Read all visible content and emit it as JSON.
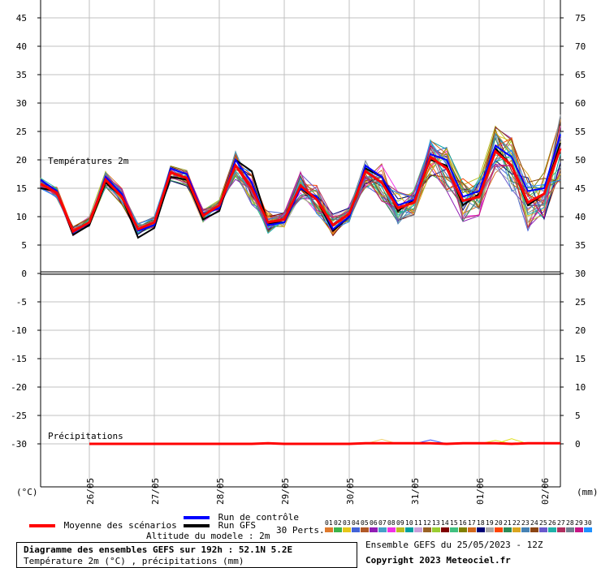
{
  "chart_data": {
    "type": "line",
    "panels": [
      {
        "name": "Températures 2m",
        "left_axis": {
          "min": 0,
          "max": 45,
          "ticks": [
            0,
            5,
            10,
            15,
            20,
            25,
            30,
            35,
            40,
            45
          ]
        },
        "right_axis": {
          "ticks": [
            30,
            35,
            40,
            45,
            50,
            55,
            60,
            65,
            70,
            75
          ]
        }
      },
      {
        "name": "Précipitations",
        "left_axis": {
          "ticks": [
            0,
            -5,
            -10,
            -15,
            -20,
            -25,
            -30
          ]
        },
        "right_axis": {
          "ticks": [
            30,
            25,
            20,
            15,
            10,
            5,
            0
          ]
        }
      }
    ],
    "x_tick_labels": [
      "26/05",
      "27/05",
      "28/05",
      "29/05",
      "30/05",
      "31/05",
      "01/06",
      "02/06"
    ],
    "left_unit": "(°C)",
    "right_unit": "(mm)",
    "steps_hours": [
      0,
      6,
      12,
      18,
      24,
      30,
      36,
      42,
      48,
      54,
      60,
      66,
      72,
      78,
      84,
      90,
      96,
      102,
      108,
      114,
      120,
      126,
      132,
      138,
      144,
      150,
      156,
      162,
      168,
      174,
      180,
      186,
      192
    ],
    "series": [
      {
        "name": "Moyenne des scénarios",
        "color": "#ff0000",
        "temperature": [
          15.8,
          14.2,
          7.4,
          9.0,
          16.5,
          13.5,
          7.8,
          9.0,
          17.8,
          16.8,
          10.2,
          12.0,
          19.0,
          15.0,
          9.0,
          9.5,
          15.5,
          13.0,
          8.5,
          10.5,
          18.0,
          16.0,
          11.5,
          12.5,
          20.5,
          18.5,
          12.8,
          13.5,
          21.5,
          19.0,
          12.5,
          14.0,
          22.0
        ],
        "precipitation": [
          0,
          0,
          0,
          0,
          0,
          0,
          0,
          0,
          0,
          0,
          0,
          0,
          0,
          0,
          0.1,
          0,
          0,
          0,
          0,
          0,
          0.1,
          0.1,
          0.1,
          0.1,
          0.1,
          0,
          0.1,
          0.1,
          0.1,
          0,
          0.1,
          0.1,
          0.1
        ]
      },
      {
        "name": "Run de contrôle",
        "color": "#0000ff",
        "temperature": [
          16.5,
          14.5,
          7.2,
          8.9,
          17.0,
          14.0,
          7.5,
          8.5,
          18.5,
          17.5,
          10.5,
          11.5,
          20.0,
          16.0,
          8.5,
          9.0,
          15.0,
          13.5,
          7.8,
          10.0,
          19.0,
          17.0,
          12.0,
          13.0,
          21.0,
          20.0,
          13.5,
          14.5,
          22.5,
          20.5,
          14.5,
          15.0,
          24.5
        ],
        "precipitation": [
          0,
          0,
          0,
          0,
          0,
          0,
          0,
          0,
          0,
          0,
          0,
          0,
          0,
          0,
          0,
          0,
          0,
          0,
          0,
          0,
          0,
          0,
          0,
          0,
          0,
          0,
          0,
          0,
          0,
          0,
          0,
          0,
          0
        ]
      },
      {
        "name": "Run GFS",
        "color": "#000000",
        "temperature": [
          15.0,
          14.5,
          6.8,
          8.5,
          16.0,
          13.5,
          6.3,
          8.0,
          17.0,
          16.5,
          9.5,
          11.0,
          20.0,
          18.0,
          8.8,
          9.0,
          15.0,
          13.0,
          7.5,
          10.0,
          18.5,
          17.0,
          11.0,
          13.0,
          20.0,
          19.0,
          12.0,
          14.0,
          22.0,
          19.0,
          12.0,
          14.0,
          23.0
        ],
        "precipitation": [
          0,
          0,
          0,
          0,
          0,
          0,
          0,
          0,
          0,
          0,
          0,
          0,
          0,
          0,
          0,
          0,
          0,
          0,
          0,
          0,
          0,
          0,
          0,
          0,
          0,
          0,
          0,
          0,
          0,
          0,
          0,
          0,
          0
        ]
      }
    ],
    "perturbations_label": "30 Perts.",
    "perturbation_ids": [
      "01",
      "02",
      "03",
      "04",
      "05",
      "06",
      "07",
      "08",
      "09",
      "10",
      "11",
      "12",
      "13",
      "14",
      "15",
      "16",
      "17",
      "18",
      "19",
      "20",
      "21",
      "22",
      "23",
      "24",
      "25",
      "26",
      "27",
      "28",
      "29",
      "30"
    ],
    "perturbation_colors": [
      "#e07a2c",
      "#3cb44b",
      "#e6c619",
      "#4363d8",
      "#b15928",
      "#911eb4",
      "#46a0c9",
      "#f032e6",
      "#bcbd22",
      "#00a0a0",
      "#c9a0dc",
      "#9a6324",
      "#9acd32",
      "#800000",
      "#40c080",
      "#808000",
      "#d2691e",
      "#000075",
      "#a9a9a9",
      "#ff4500",
      "#2e8b57",
      "#daa520",
      "#4682b4",
      "#8b4513",
      "#6a5acd",
      "#20b2aa",
      "#b03060",
      "#708090",
      "#c71585",
      "#1e90ff"
    ],
    "perturbation_temperature_spread": [
      1.0,
      1.0,
      0.8,
      1.0,
      1.5,
      1.5,
      1.0,
      1.0,
      1.5,
      1.5,
      1.2,
      1.0,
      2.5,
      3.0,
      2.0,
      1.5,
      2.5,
      2.5,
      2.0,
      1.5,
      3.0,
      3.5,
      3.0,
      2.5,
      3.5,
      4.0,
      4.0,
      3.5,
      4.5,
      5.0,
      5.0,
      4.5,
      6.0
    ]
  },
  "legend": {
    "mean": "Moyenne des scénarios",
    "control": "Run de contrôle",
    "gfs": "Run GFS",
    "altitude": "Altitude du modele : 2m",
    "perts": "30 Perts."
  },
  "footer": {
    "title": "Diagramme des ensembles GEFS sur 192h : 52.1N 5.2E",
    "subtitle": "Température 2m (°C) , précipitations (mm)",
    "ensemble": "Ensemble GEFS du 25/05/2023 - 12Z",
    "copyright": "Copyright 2023 Meteociel.fr"
  },
  "colors": {
    "mean": "#ff0000",
    "control": "#0000ff",
    "gfs": "#000000",
    "grid": "#c0c0c0"
  }
}
